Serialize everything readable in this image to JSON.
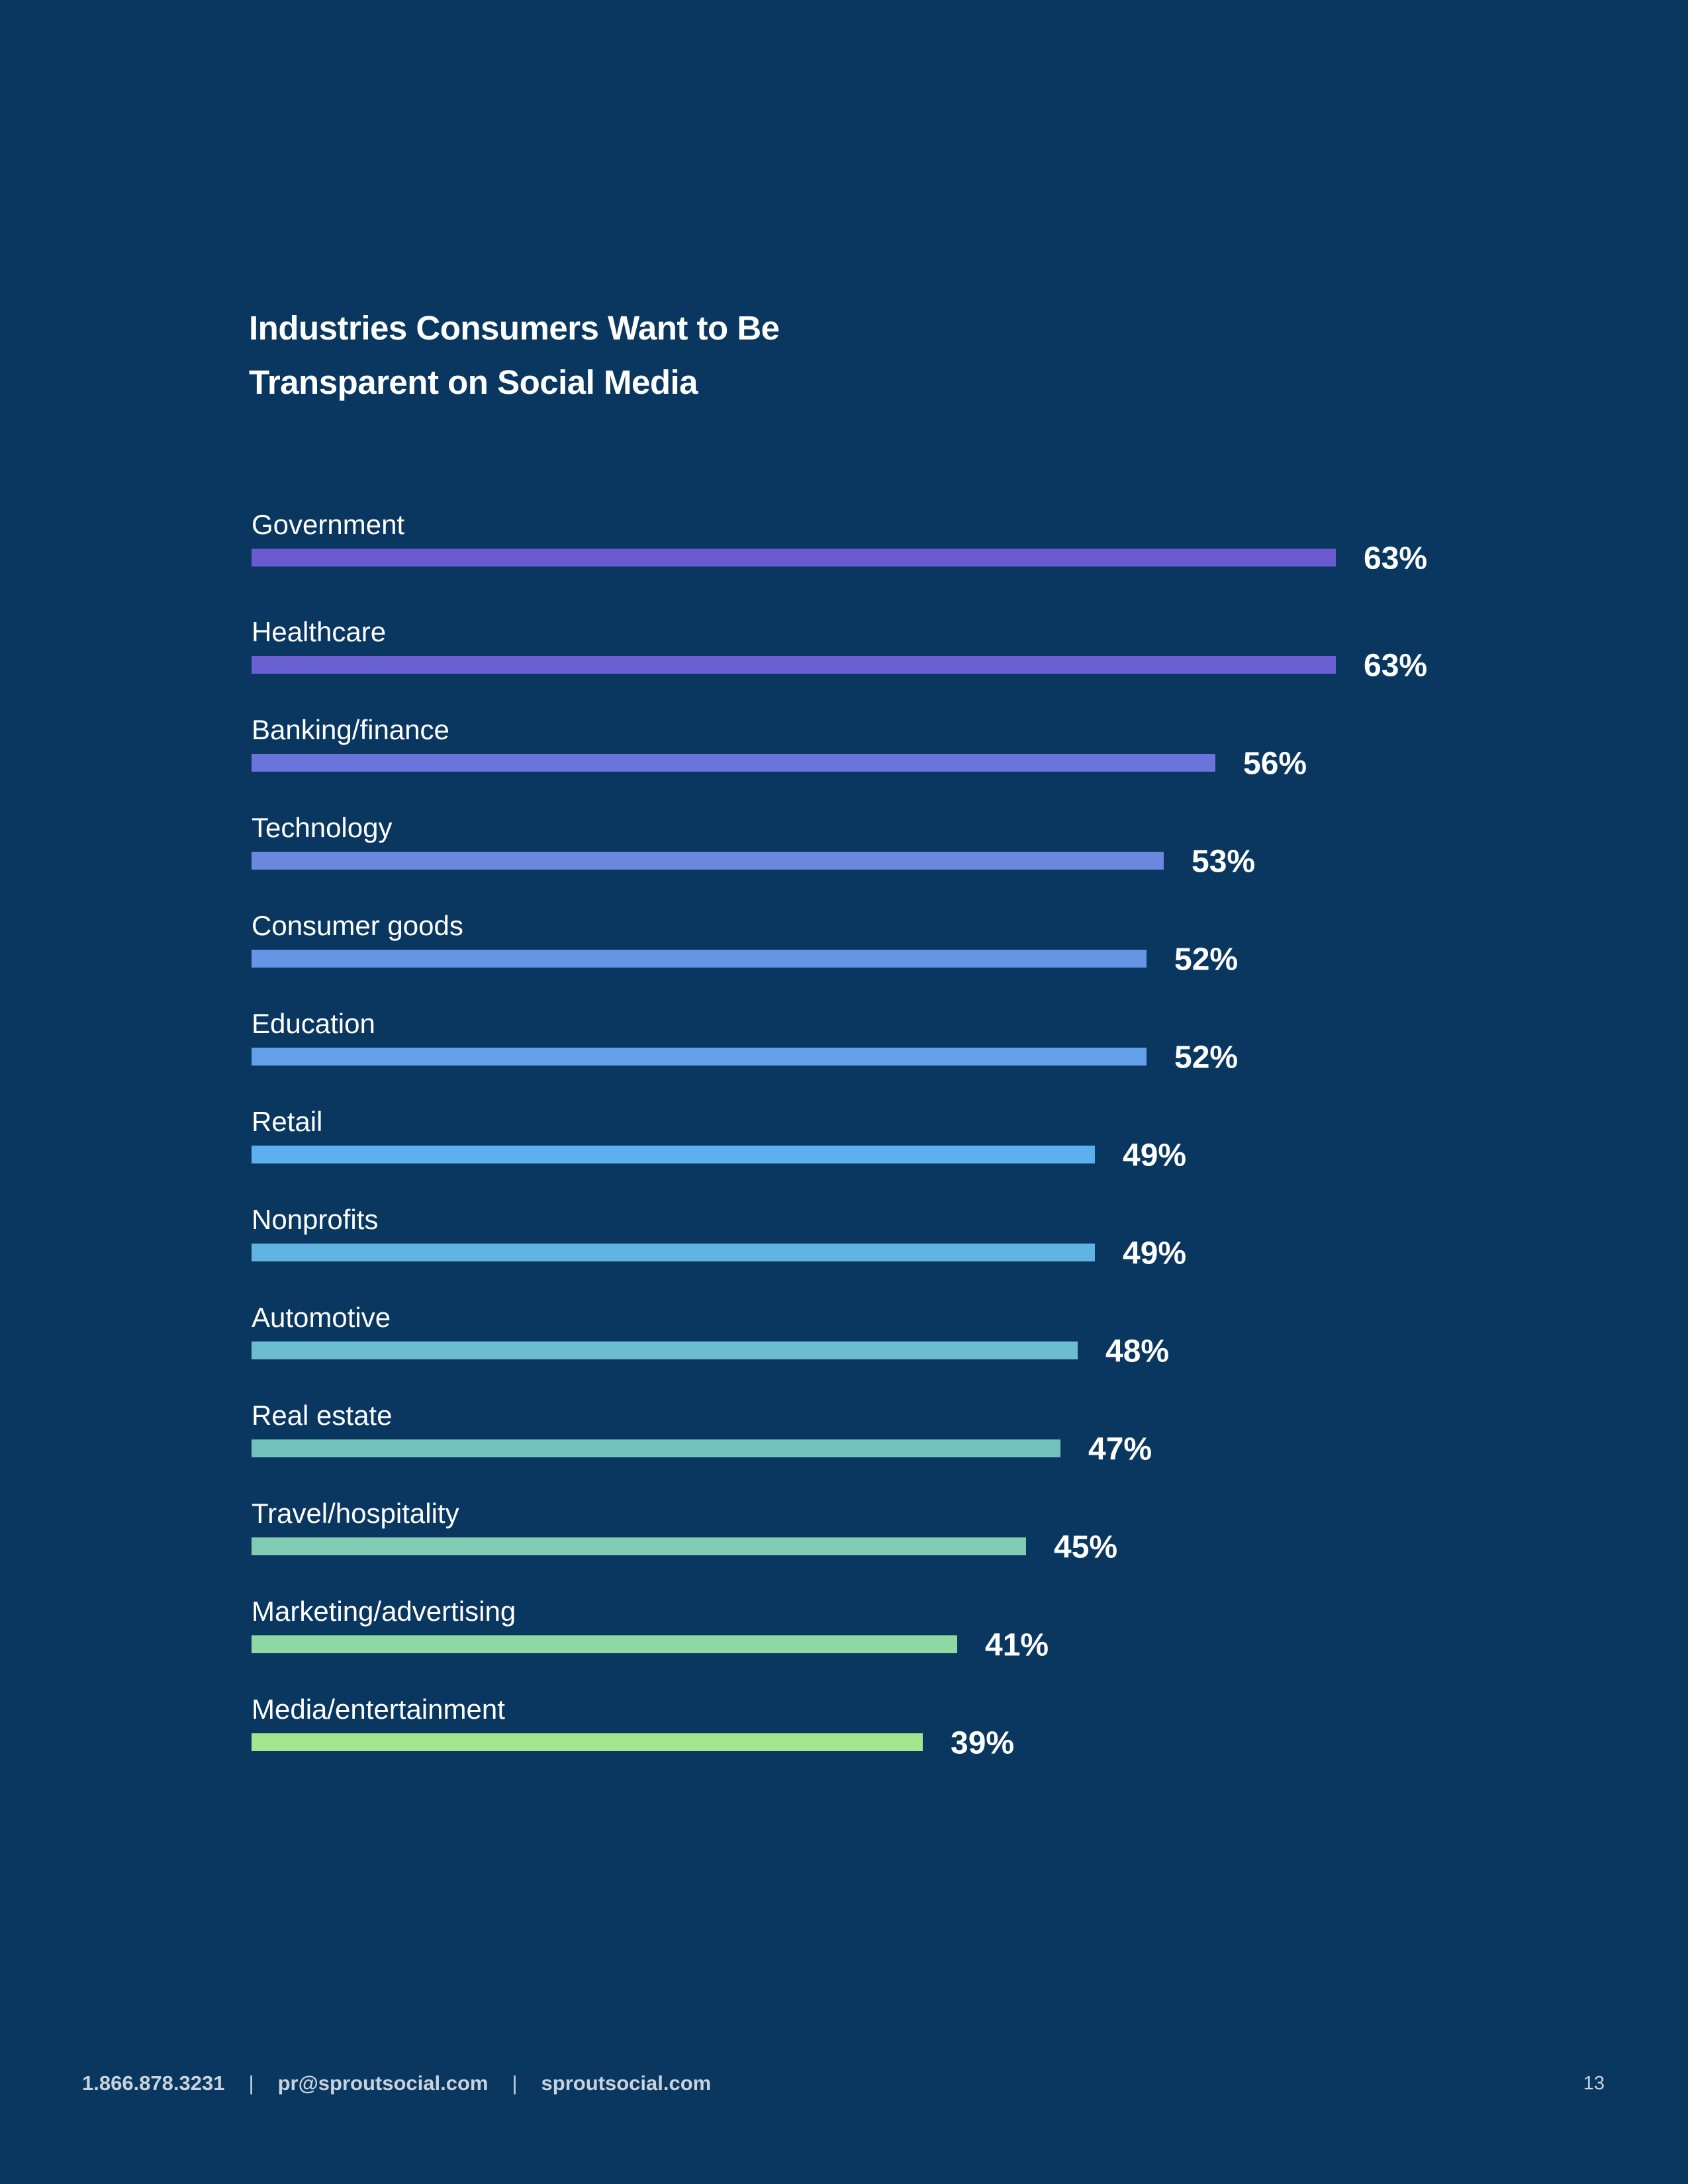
{
  "chart_data": {
    "type": "bar",
    "orientation": "horizontal",
    "title_line1": "Industries Consumers Want to Be",
    "title_line2": "Transparent on Social Media",
    "categories": [
      "Government",
      "Healthcare",
      "Banking/finance",
      "Technology",
      "Consumer goods",
      "Education",
      "Retail",
      "Nonprofits",
      "Automotive",
      "Real estate",
      "Travel/hospitality",
      "Marketing/advertising",
      "Media/entertainment"
    ],
    "values": [
      63,
      63,
      56,
      53,
      52,
      52,
      49,
      49,
      48,
      47,
      45,
      41,
      39
    ],
    "value_labels": [
      "63%",
      "63%",
      "56%",
      "53%",
      "52%",
      "52%",
      "49%",
      "49%",
      "48%",
      "47%",
      "45%",
      "41%",
      "39%"
    ],
    "colors": [
      "#6a59cf",
      "#6a5fd3",
      "#6b74db",
      "#6b87e0",
      "#6795e6",
      "#62a0ea",
      "#5cb0f0",
      "#61b4e2",
      "#6dbdd0",
      "#74c2be",
      "#80cbb2",
      "#8ed8a2",
      "#a1e58f"
    ],
    "unit": "%"
  },
  "footer": {
    "phone": "1.866.878.3231",
    "email": "pr@sproutsocial.com",
    "website": "sproutsocial.com",
    "separator": "|",
    "page_number": "13"
  }
}
